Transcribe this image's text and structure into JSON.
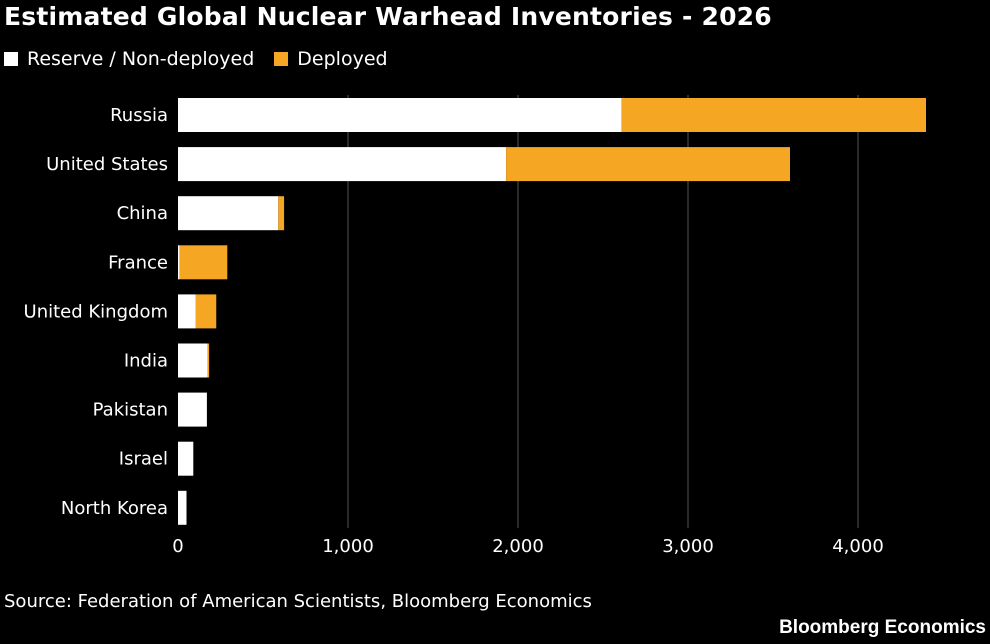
{
  "title": "Estimated Global Nuclear Warhead Inventories - 2026",
  "legend": {
    "reserve_label": "Reserve / Non-deployed",
    "deployed_label": "Deployed"
  },
  "colors": {
    "background": "#000000",
    "reserve": "#ffffff",
    "deployed": "#f5a623",
    "grid": "#555555",
    "text": "#ffffff"
  },
  "source": "Source: Federation of American Scientists, Bloomberg Economics",
  "brand": "Bloomberg Economics",
  "chart_data": {
    "type": "bar",
    "orientation": "horizontal",
    "stacked": true,
    "categories": [
      "Russia",
      "United States",
      "China",
      "France",
      "United Kingdom",
      "India",
      "Pakistan",
      "Israel",
      "North Korea"
    ],
    "series": [
      {
        "name": "Reserve / Non-deployed",
        "values": [
          2610,
          1930,
          590,
          10,
          105,
          175,
          170,
          90,
          50
        ]
      },
      {
        "name": "Deployed",
        "values": [
          1790,
          1670,
          34,
          280,
          120,
          8,
          0,
          0,
          0
        ]
      }
    ],
    "xticks": [
      0,
      1000,
      2000,
      3000,
      4000
    ],
    "xtick_labels": [
      "0",
      "1,000",
      "2,000",
      "3,000",
      "4,000"
    ],
    "xlim": [
      0,
      4500
    ],
    "grid": true,
    "legend_position": "top-left"
  }
}
